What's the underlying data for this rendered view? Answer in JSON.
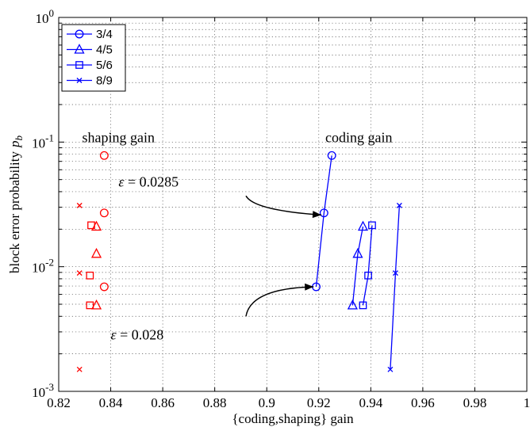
{
  "chart_data": {
    "type": "scatter",
    "xlabel": "{coding,shaping} gain",
    "ylabel": "block error probability",
    "ylabel_symbol": "p",
    "ylabel_subscript": "b",
    "xlim": [
      0.82,
      1.0
    ],
    "ylim": [
      0.001,
      1
    ],
    "yscale": "log",
    "grid": true,
    "legend_position": "top-left",
    "x_ticks": [
      "0.82",
      "0.84",
      "0.86",
      "0.88",
      "0.9",
      "0.92",
      "0.94",
      "0.96",
      "0.98",
      "1"
    ],
    "y_ticks": [
      {
        "value": 0.001,
        "base": "10",
        "exp": "-3"
      },
      {
        "value": 0.01,
        "base": "10",
        "exp": "-2"
      },
      {
        "value": 0.1,
        "base": "10",
        "exp": "-1"
      },
      {
        "value": 1,
        "base": "10",
        "exp": "0"
      }
    ],
    "series": [
      {
        "name": "3/4",
        "marker": "circle",
        "coding_color": "#0000ff",
        "shaping_color": "#ff0000",
        "coding": [
          [
            0.919,
            0.0069
          ],
          [
            0.922,
            0.027
          ],
          [
            0.925,
            0.078
          ]
        ],
        "shaping": [
          [
            0.8375,
            0.0069
          ],
          [
            0.8375,
            0.027
          ],
          [
            0.8375,
            0.078
          ]
        ]
      },
      {
        "name": "4/5",
        "marker": "triangle",
        "coding_color": "#0000ff",
        "shaping_color": "#ff0000",
        "coding": [
          [
            0.933,
            0.0049
          ],
          [
            0.935,
            0.0127
          ],
          [
            0.937,
            0.021
          ]
        ],
        "shaping": [
          [
            0.8345,
            0.0049
          ],
          [
            0.8345,
            0.0127
          ],
          [
            0.8345,
            0.021
          ]
        ]
      },
      {
        "name": "5/6",
        "marker": "square",
        "coding_color": "#0000ff",
        "shaping_color": "#ff0000",
        "coding": [
          [
            0.937,
            0.0049
          ],
          [
            0.939,
            0.0085
          ],
          [
            0.9405,
            0.0215
          ]
        ],
        "shaping": [
          [
            0.832,
            0.0049
          ],
          [
            0.832,
            0.0085
          ],
          [
            0.8325,
            0.0215
          ]
        ]
      },
      {
        "name": "8/9",
        "marker": "x",
        "coding_color": "#0000ff",
        "shaping_color": "#ff0000",
        "coding": [
          [
            0.9475,
            0.0015
          ],
          [
            0.9495,
            0.0089
          ],
          [
            0.951,
            0.031
          ]
        ],
        "shaping": [
          [
            0.828,
            0.0015
          ],
          [
            0.828,
            0.0089
          ],
          [
            0.828,
            0.031
          ]
        ]
      }
    ],
    "annotations": [
      {
        "id": "shaping",
        "text": "shaping gain",
        "x": 0.829,
        "y": 0.1
      },
      {
        "id": "coding",
        "text": "coding gain",
        "x": 0.9225,
        "y": 0.1
      },
      {
        "id": "eps1",
        "symbol": "ε",
        "text": " = 0.0285",
        "x": 0.843,
        "y": 0.044,
        "arrow_to": [
          0.921,
          0.026
        ],
        "arrow_from": [
          0.892,
          0.037
        ]
      },
      {
        "id": "eps2",
        "symbol": "ε",
        "text": " = 0.028",
        "x": 0.84,
        "y": 0.0026,
        "arrow_to": [
          0.918,
          0.0069
        ],
        "arrow_from": [
          0.892,
          0.004
        ]
      }
    ]
  }
}
